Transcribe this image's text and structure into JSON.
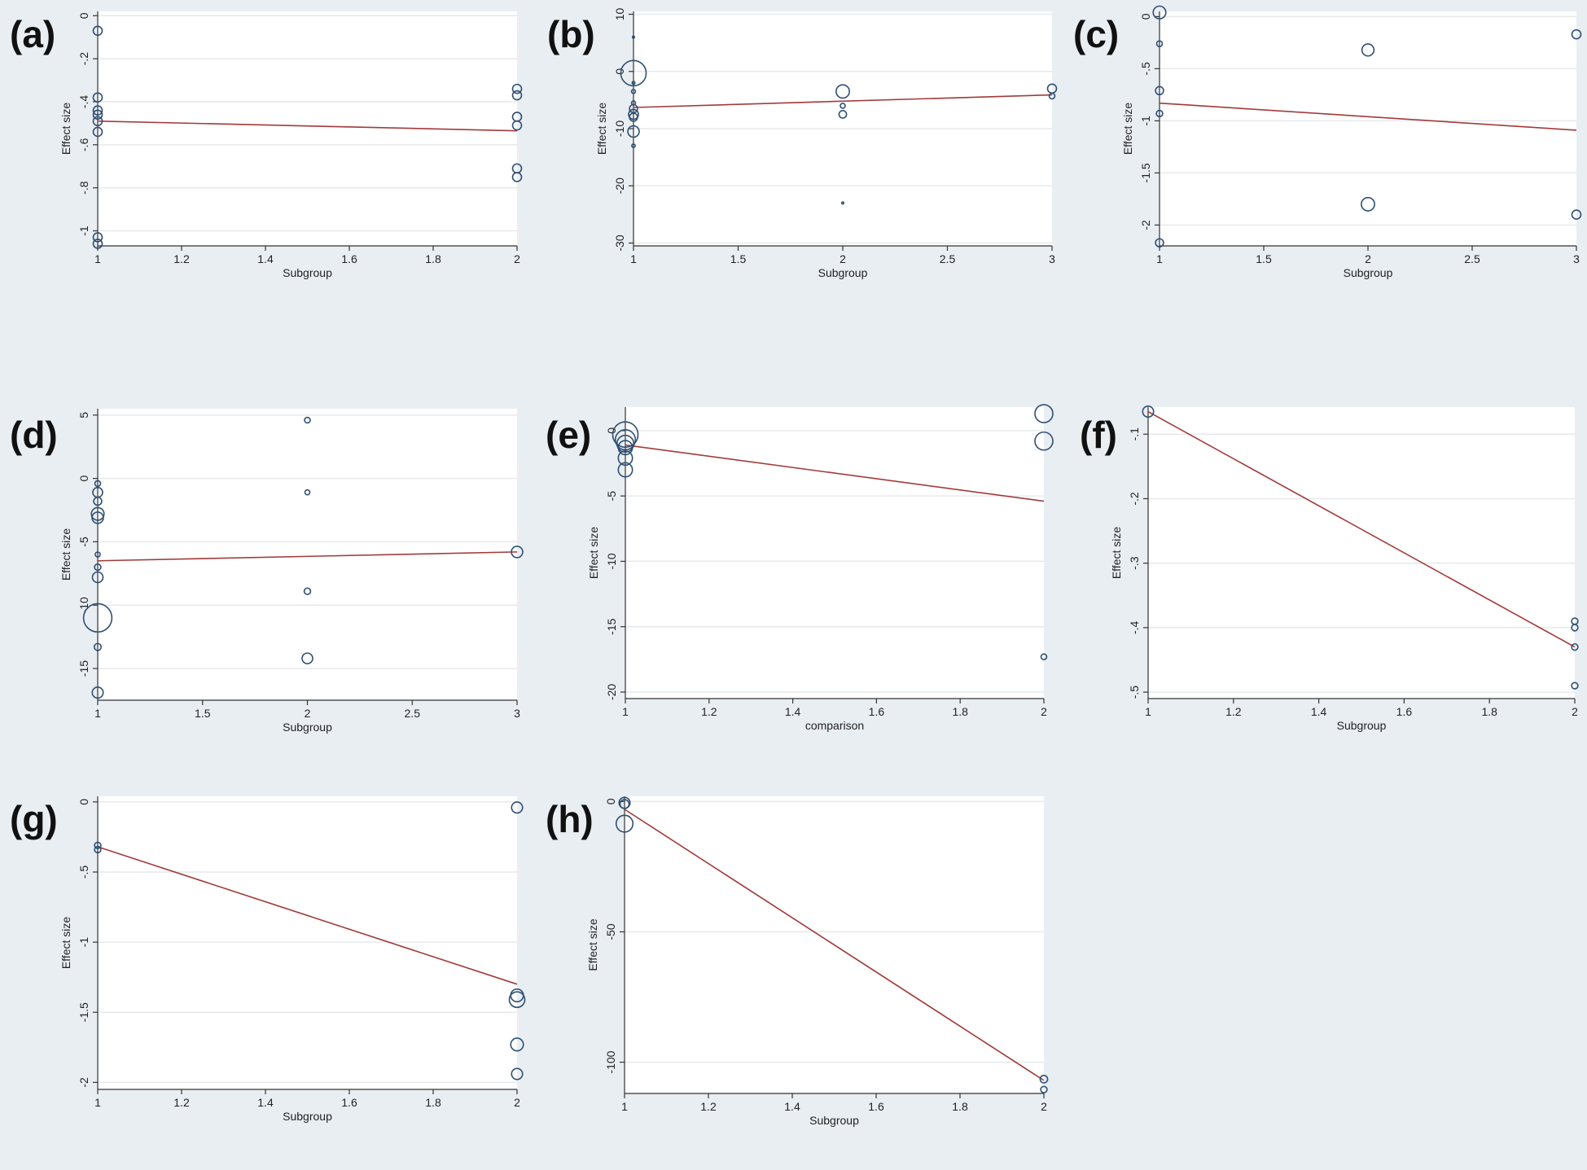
{
  "colors": {
    "background": "#e9eef3",
    "plot_bg": "#ffffff",
    "grid": "#e6e9ec",
    "marker": "#2f4f73",
    "fit_line": "#a23a3a",
    "axis": "#333333"
  },
  "chart_data": [
    {
      "panel": "(a)",
      "type": "scatter",
      "xlabel": "Subgroup",
      "ylabel": "Effect size",
      "xlim": [
        1,
        2
      ],
      "ylim": [
        -1.07,
        0.02
      ],
      "xticks": [
        1,
        1.2,
        1.4,
        1.6,
        1.8,
        2
      ],
      "xtick_labels": [
        "1",
        "1.2",
        "1.4",
        "1.6",
        "1.8",
        "2"
      ],
      "yticks": [
        0,
        -0.2,
        -0.4,
        -0.6,
        -0.8,
        -1
      ],
      "ytick_labels": [
        "0",
        "-.2",
        "-.4",
        "-.6",
        "-.8",
        "-1"
      ],
      "points": [
        {
          "x": 1,
          "y": -0.07,
          "w": 1
        },
        {
          "x": 1,
          "y": -0.38,
          "w": 1
        },
        {
          "x": 1,
          "y": -0.44,
          "w": 1
        },
        {
          "x": 1,
          "y": -0.46,
          "w": 1
        },
        {
          "x": 1,
          "y": -0.49,
          "w": 1
        },
        {
          "x": 1,
          "y": -0.54,
          "w": 1
        },
        {
          "x": 1,
          "y": -1.03,
          "w": 1
        },
        {
          "x": 1,
          "y": -1.06,
          "w": 1
        },
        {
          "x": 2,
          "y": -0.34,
          "w": 1
        },
        {
          "x": 2,
          "y": -0.37,
          "w": 1
        },
        {
          "x": 2,
          "y": -0.47,
          "w": 1
        },
        {
          "x": 2,
          "y": -0.51,
          "w": 1
        },
        {
          "x": 2,
          "y": -0.71,
          "w": 1
        },
        {
          "x": 2,
          "y": -0.75,
          "w": 1
        }
      ],
      "fit": [
        [
          1,
          -0.49
        ],
        [
          2,
          -0.535
        ]
      ]
    },
    {
      "panel": "(b)",
      "type": "scatter",
      "xlabel": "Subgroup",
      "ylabel": "Effect size",
      "xlim": [
        1,
        3
      ],
      "ylim": [
        -30.5,
        10.5
      ],
      "xticks": [
        1,
        1.5,
        2,
        2.5,
        3
      ],
      "xtick_labels": [
        "1",
        "1.5",
        "2",
        "2.5",
        "3"
      ],
      "yticks": [
        10,
        0,
        -10,
        -20,
        -30
      ],
      "ytick_labels": [
        "10",
        "0",
        "-10",
        "-20",
        "-30"
      ],
      "points": [
        {
          "x": 1,
          "y": 6,
          "w": 0.05
        },
        {
          "x": 1,
          "y": -0.3,
          "w": 8
        },
        {
          "x": 1,
          "y": -2,
          "w": 0.1
        },
        {
          "x": 1,
          "y": -3.5,
          "w": 0.2
        },
        {
          "x": 1,
          "y": -5.5,
          "w": 0.2
        },
        {
          "x": 1,
          "y": -6.5,
          "w": 0.8
        },
        {
          "x": 1,
          "y": -7.5,
          "w": 1.2
        },
        {
          "x": 1,
          "y": -8,
          "w": 0.8
        },
        {
          "x": 1,
          "y": -10.5,
          "w": 1.6
        },
        {
          "x": 1,
          "y": -13,
          "w": 0.15
        },
        {
          "x": 2,
          "y": -3.5,
          "w": 2.2
        },
        {
          "x": 2,
          "y": -6,
          "w": 0.3
        },
        {
          "x": 2,
          "y": -7.5,
          "w": 0.7
        },
        {
          "x": 2,
          "y": -23,
          "w": 0.05
        },
        {
          "x": 3,
          "y": -3,
          "w": 1
        },
        {
          "x": 3,
          "y": -4.3,
          "w": 0.4
        }
      ],
      "fit": [
        [
          1,
          -6.3
        ],
        [
          3,
          -4.1
        ]
      ]
    },
    {
      "panel": "(c)",
      "type": "scatter",
      "xlabel": "Subgroup",
      "ylabel": "Effect size",
      "xlim": [
        1,
        3
      ],
      "ylim": [
        -2.2,
        0.05
      ],
      "xticks": [
        1,
        1.5,
        2,
        2.5,
        3
      ],
      "xtick_labels": [
        "1",
        "1.5",
        "2",
        "2.5",
        "3"
      ],
      "yticks": [
        0,
        -0.5,
        -1,
        -1.5,
        -2
      ],
      "ytick_labels": [
        "0",
        "-.5",
        "-1",
        "-1.5",
        "-2"
      ],
      "points": [
        {
          "x": 1,
          "y": 0.04,
          "w": 2
        },
        {
          "x": 1,
          "y": -0.26,
          "w": 0.4
        },
        {
          "x": 1,
          "y": -0.71,
          "w": 0.8
        },
        {
          "x": 1,
          "y": -0.93,
          "w": 0.5
        },
        {
          "x": 1,
          "y": -2.17,
          "w": 0.8
        },
        {
          "x": 2,
          "y": -0.32,
          "w": 1.8
        },
        {
          "x": 2,
          "y": -1.8,
          "w": 2.2
        },
        {
          "x": 3,
          "y": -0.17,
          "w": 1
        },
        {
          "x": 3,
          "y": -1.9,
          "w": 1
        }
      ],
      "fit": [
        [
          1,
          -0.83
        ],
        [
          3,
          -1.09
        ]
      ]
    },
    {
      "panel": "(d)",
      "type": "scatter",
      "xlabel": "Subgroup",
      "ylabel": "Effect size",
      "xlim": [
        1,
        3
      ],
      "ylim": [
        -17.5,
        5.5
      ],
      "xticks": [
        1,
        1.5,
        2,
        2.5,
        3
      ],
      "xtick_labels": [
        "1",
        "1.5",
        "2",
        "2.5",
        "3"
      ],
      "yticks": [
        5,
        0,
        -5,
        -10,
        -15
      ],
      "ytick_labels": [
        "5",
        "0",
        "-5",
        "-10",
        "-15"
      ],
      "points": [
        {
          "x": 1,
          "y": -0.4,
          "w": 0.4
        },
        {
          "x": 1,
          "y": -1.1,
          "w": 1.2
        },
        {
          "x": 1,
          "y": -1.8,
          "w": 0.8
        },
        {
          "x": 1,
          "y": -2.8,
          "w": 2
        },
        {
          "x": 1,
          "y": -3.1,
          "w": 1.6
        },
        {
          "x": 1,
          "y": -6,
          "w": 0.3
        },
        {
          "x": 1,
          "y": -7,
          "w": 0.5
        },
        {
          "x": 1,
          "y": -7.8,
          "w": 1.4
        },
        {
          "x": 1,
          "y": -11,
          "w": 10
        },
        {
          "x": 1,
          "y": -13.3,
          "w": 0.6
        },
        {
          "x": 1,
          "y": -16.9,
          "w": 1.5
        },
        {
          "x": 2,
          "y": 4.6,
          "w": 0.4
        },
        {
          "x": 2,
          "y": -1.1,
          "w": 0.3
        },
        {
          "x": 2,
          "y": -8.9,
          "w": 0.5
        },
        {
          "x": 2,
          "y": -14.2,
          "w": 1.4
        },
        {
          "x": 3,
          "y": -5.8,
          "w": 1.6
        }
      ],
      "fit": [
        [
          1,
          -6.5
        ],
        [
          3,
          -5.8
        ]
      ]
    },
    {
      "panel": "(e)",
      "type": "scatter",
      "xlabel": "comparison",
      "ylabel": "Effect size",
      "xlim": [
        1,
        2
      ],
      "ylim": [
        -20.5,
        1.8
      ],
      "xticks": [
        1,
        1.2,
        1.4,
        1.6,
        1.8,
        2
      ],
      "xtick_labels": [
        "1",
        "1.2",
        "1.4",
        "1.6",
        "1.8",
        "2"
      ],
      "yticks": [
        0,
        -5,
        -10,
        -15,
        -20
      ],
      "ytick_labels": [
        "0",
        "-5",
        "-10",
        "-15",
        "-20"
      ],
      "points": [
        {
          "x": 1,
          "y": -0.3,
          "w": 8
        },
        {
          "x": 1,
          "y": -0.7,
          "w": 5
        },
        {
          "x": 1,
          "y": -1,
          "w": 3.5
        },
        {
          "x": 1,
          "y": -1.3,
          "w": 2.5
        },
        {
          "x": 1,
          "y": -2.1,
          "w": 2.5
        },
        {
          "x": 1,
          "y": -3,
          "w": 2.5
        },
        {
          "x": 2,
          "y": 1.3,
          "w": 4
        },
        {
          "x": 2,
          "y": -0.8,
          "w": 4
        },
        {
          "x": 2,
          "y": -17.3,
          "w": 0.4
        }
      ],
      "fit": [
        [
          1,
          -1.1
        ],
        [
          2,
          -5.4
        ]
      ]
    },
    {
      "panel": "(f)",
      "type": "scatter",
      "xlabel": "Subgroup",
      "ylabel": "Effect size",
      "xlim": [
        1,
        2
      ],
      "ylim": [
        -0.51,
        -0.058
      ],
      "xticks": [
        1,
        1.2,
        1.4,
        1.6,
        1.8,
        2
      ],
      "xtick_labels": [
        "1",
        "1.2",
        "1.4",
        "1.6",
        "1.8",
        "2"
      ],
      "yticks": [
        -0.1,
        -0.2,
        -0.3,
        -0.4,
        -0.5
      ],
      "ytick_labels": [
        "-.1",
        "-.2",
        "-.3",
        "-.4",
        "-.5"
      ],
      "points": [
        {
          "x": 1,
          "y": -0.065,
          "w": 1.5
        },
        {
          "x": 2,
          "y": -0.39,
          "w": 0.5
        },
        {
          "x": 2,
          "y": -0.4,
          "w": 0.5
        },
        {
          "x": 2,
          "y": -0.43,
          "w": 0.5
        },
        {
          "x": 2,
          "y": -0.49,
          "w": 0.5
        }
      ],
      "fit": [
        [
          1,
          -0.065
        ],
        [
          2,
          -0.43
        ]
      ]
    },
    {
      "panel": "(g)",
      "type": "scatter",
      "xlabel": "Subgroup",
      "ylabel": "Effect size",
      "xlim": [
        1,
        2
      ],
      "ylim": [
        -2.05,
        0.04
      ],
      "xticks": [
        1,
        1.2,
        1.4,
        1.6,
        1.8,
        2
      ],
      "xtick_labels": [
        "1",
        "1.2",
        "1.4",
        "1.6",
        "1.8",
        "2"
      ],
      "yticks": [
        0,
        -0.5,
        -1,
        -1.5,
        -2
      ],
      "ytick_labels": [
        "0",
        "-.5",
        "-1",
        "-1.5",
        "-2"
      ],
      "points": [
        {
          "x": 1,
          "y": -0.31,
          "w": 0.5
        },
        {
          "x": 1,
          "y": -0.34,
          "w": 0.5
        },
        {
          "x": 2,
          "y": -0.04,
          "w": 1.5
        },
        {
          "x": 2,
          "y": -1.38,
          "w": 2
        },
        {
          "x": 2,
          "y": -1.41,
          "w": 3
        },
        {
          "x": 2,
          "y": -1.73,
          "w": 2
        },
        {
          "x": 2,
          "y": -1.94,
          "w": 1.5
        }
      ],
      "fit": [
        [
          1,
          -0.32
        ],
        [
          2,
          -1.3
        ]
      ]
    },
    {
      "panel": "(h)",
      "type": "scatter",
      "xlabel": "Subgroup",
      "ylabel": "Effect size",
      "xlim": [
        1,
        2
      ],
      "ylim": [
        -112,
        2
      ],
      "xticks": [
        1,
        1.2,
        1.4,
        1.6,
        1.8,
        2
      ],
      "xtick_labels": [
        "1",
        "1.2",
        "1.4",
        "1.6",
        "1.8",
        "2"
      ],
      "yticks": [
        0,
        -50,
        -100
      ],
      "ytick_labels": [
        "0",
        "-50",
        "-100"
      ],
      "points": [
        {
          "x": 1,
          "y": -0.5,
          "w": 1.5
        },
        {
          "x": 1,
          "y": -1,
          "w": 1
        },
        {
          "x": 1,
          "y": -8.5,
          "w": 3.5
        },
        {
          "x": 2,
          "y": -106.5,
          "w": 0.7
        },
        {
          "x": 2,
          "y": -110.5,
          "w": 0.5
        }
      ],
      "fit": [
        [
          1,
          -3
        ],
        [
          2,
          -107
        ]
      ]
    }
  ]
}
